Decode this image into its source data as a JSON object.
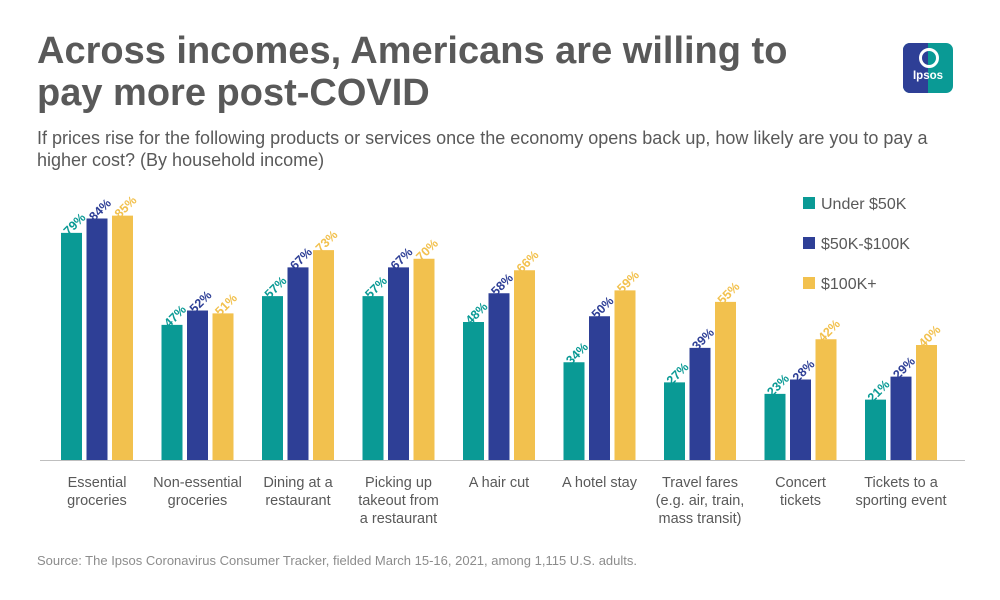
{
  "header": {
    "title": "Across incomes, Americans are willing to pay more post-COVID",
    "subtitle": "If prices rise for the following products or services once the economy opens back up, how likely are you to pay a higher cost? (By household income)",
    "logo_text": "Ipsos"
  },
  "footer": {
    "source": "Source: The Ipsos Coronavirus Consumer Tracker, fielded March 15-16, 2021, among 1,115 U.S. adults."
  },
  "colors": {
    "under_50k": "#0a9a95",
    "50k_100k": "#2e3f96",
    "100k_plus": "#f2c14e",
    "text": "#595959",
    "axis": "#bfbfbf"
  },
  "chart_data": {
    "type": "bar",
    "title": "Across incomes, Americans are willing to pay more post-COVID",
    "xlabel": "",
    "ylabel": "",
    "ylim": [
      0,
      100
    ],
    "grid": false,
    "legend_position": "top-right",
    "categories": [
      [
        "Essential",
        "groceries"
      ],
      [
        "Non-essential",
        "groceries"
      ],
      [
        "Dining at a",
        "restaurant"
      ],
      [
        "Picking up",
        "takeout from",
        "a restaurant"
      ],
      [
        "A hair cut"
      ],
      [
        "A hotel stay"
      ],
      [
        "Travel fares",
        "(e.g. air, train,",
        "mass transit)"
      ],
      [
        "Concert",
        "tickets"
      ],
      [
        "Tickets to a",
        "sporting event"
      ]
    ],
    "series": [
      {
        "name": "Under $50K",
        "color": "#0a9a95",
        "values": [
          79,
          47,
          57,
          57,
          48,
          34,
          27,
          23,
          21
        ],
        "labels": [
          "79%",
          "47%",
          "57%",
          "57%",
          "48%",
          "34%",
          "27%",
          "23%",
          "21%"
        ]
      },
      {
        "name": "$50K-$100K",
        "color": "#2e3f96",
        "values": [
          84,
          52,
          67,
          67,
          58,
          50,
          39,
          28,
          29
        ],
        "labels": [
          "84%",
          "52%",
          "67%",
          "67%",
          "58%",
          "50%",
          "39%",
          "28%",
          "29%"
        ]
      },
      {
        "name": "$100K+",
        "color": "#f2c14e",
        "values": [
          85,
          51,
          73,
          70,
          66,
          59,
          55,
          42,
          40
        ],
        "labels": [
          "85%",
          "51%",
          "73%",
          "70%",
          "66%",
          "59%",
          "55%",
          "42%",
          "40%"
        ]
      }
    ]
  }
}
